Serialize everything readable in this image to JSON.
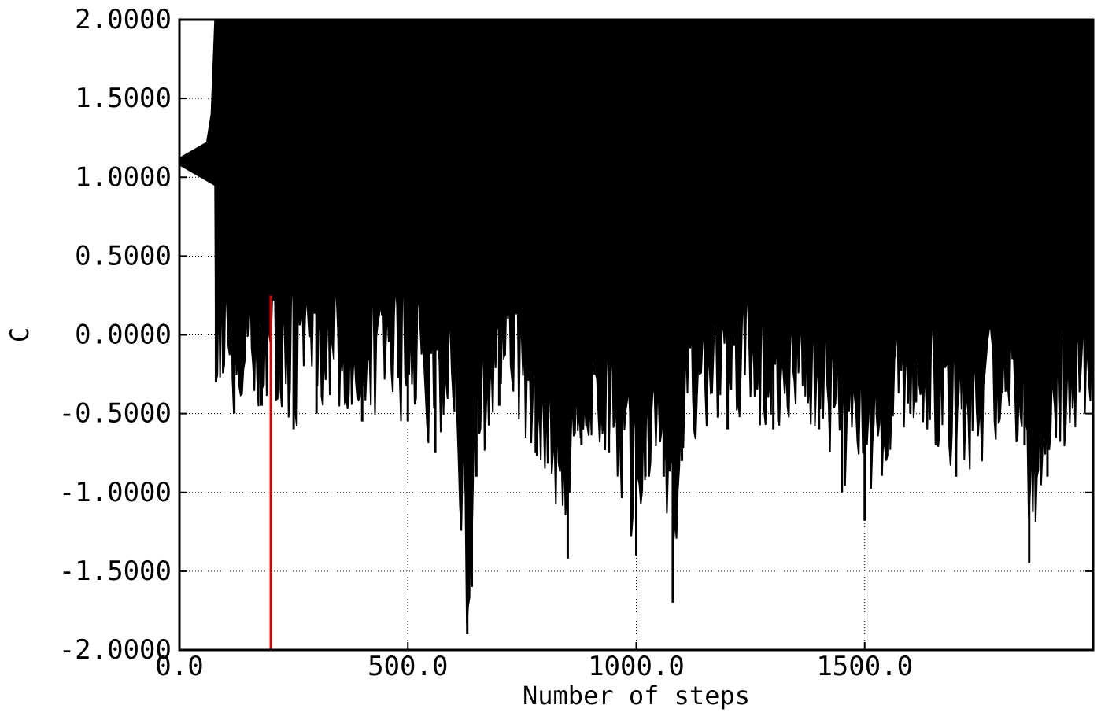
{
  "chart_data": {
    "type": "line",
    "title": "",
    "xlabel": "Number of steps",
    "ylabel": "C",
    "xlim": [
      0,
      2000
    ],
    "ylim": [
      -2.0,
      2.0
    ],
    "grid": true,
    "grid_style": "dotted",
    "x_ticks": [
      0,
      500,
      1000,
      1500
    ],
    "x_tick_labels": [
      "0.0",
      "500.0",
      "1000.0",
      "1500.0"
    ],
    "y_ticks": [
      -2.0,
      -1.5,
      -1.0,
      -0.5,
      0.0,
      0.5,
      1.0,
      1.5,
      2.0
    ],
    "y_tick_labels": [
      "-2.0000",
      "-1.5000",
      "-1.0000",
      "-0.5000",
      "0.0000",
      "0.5000",
      "1.0000",
      "1.5000",
      "2.0000"
    ],
    "series": [
      {
        "color": "#000000",
        "description_lower_envelope": {
          "x": [
            0,
            40,
            60,
            70,
            80,
            120,
            180,
            250,
            300,
            400,
            500,
            560,
            600,
            630,
            640,
            650,
            700,
            780,
            850,
            880,
            940,
            1000,
            1020,
            1060,
            1080,
            1100,
            1200,
            1300,
            1400,
            1450,
            1500,
            1600,
            1700,
            1850,
            1860,
            1900,
            2000
          ],
          "y": [
            1.1,
            1.1,
            1.05,
            0.95,
            -0.3,
            -0.5,
            -0.45,
            -0.6,
            -0.5,
            -0.55,
            -0.55,
            -0.75,
            -0.4,
            -1.9,
            -1.6,
            -0.9,
            -0.45,
            -0.75,
            -1.42,
            -0.7,
            -0.75,
            -1.4,
            -0.9,
            -0.9,
            -1.7,
            -0.8,
            -0.6,
            -0.6,
            -0.6,
            -1.0,
            -1.18,
            -0.5,
            -0.9,
            -0.7,
            -1.45,
            -0.9,
            -0.5
          ]
        }
      },
      {
        "color": "#dd0000",
        "vertical_marker": {
          "x": 200,
          "y_from": -2.0,
          "y_to": 0.25
        }
      }
    ]
  }
}
